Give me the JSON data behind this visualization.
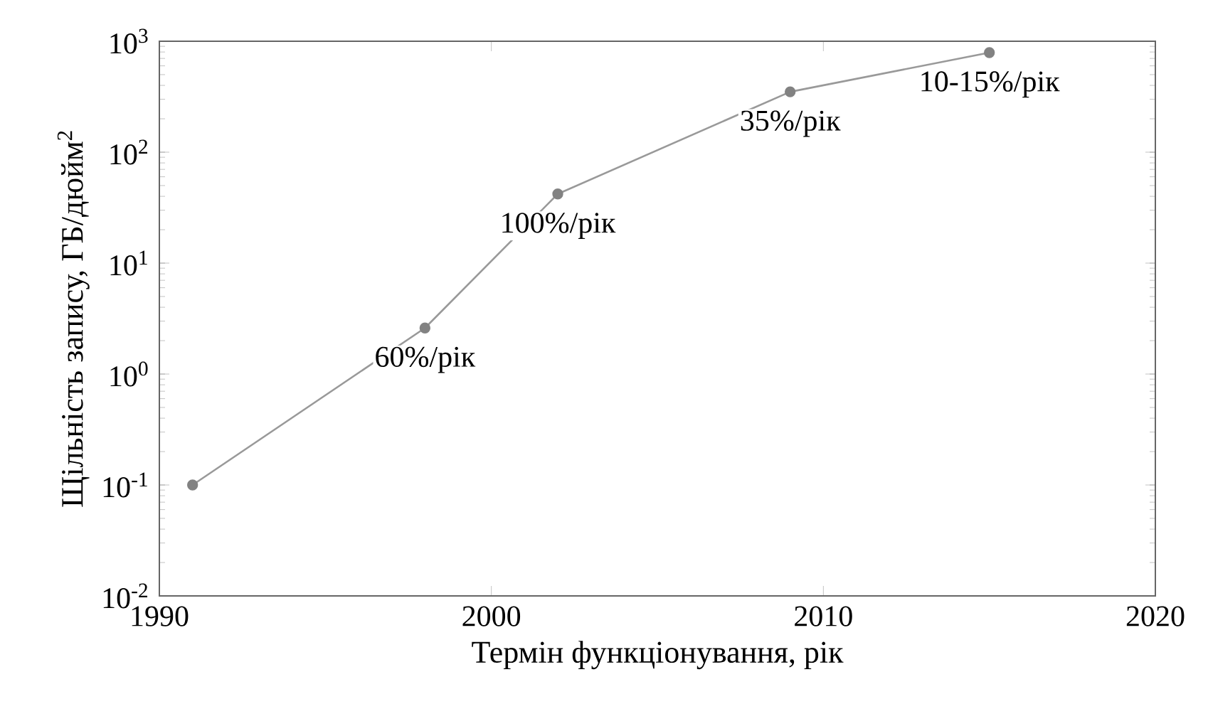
{
  "chart_data": {
    "type": "line",
    "xlabel": "Термін функціонування, рік",
    "ylabel": "Щільність запису,  ГБ/дюйм$^{2}$",
    "x": [
      1991,
      1998,
      2002,
      2009,
      2015
    ],
    "series": [
      {
        "color": "#999999",
        "values": [
          0.1,
          2.6,
          42,
          350,
          790
        ]
      }
    ],
    "xlim": [
      1990,
      2020
    ],
    "xticks": [
      1990,
      2000,
      2010,
      2020
    ],
    "ylim": [
      0.01,
      1000
    ],
    "yticks": [
      {
        "value": 0.01,
        "label": "10$^{-2}$"
      },
      {
        "value": 0.1,
        "label": "10$^{-1}$"
      },
      {
        "value": 1,
        "label": "10$^{0}$"
      },
      {
        "value": 10,
        "label": "10$^{1}$"
      },
      {
        "value": 100,
        "label": "10$^{2}$"
      },
      {
        "value": 1000,
        "label": "10$^{3}$"
      }
    ],
    "log": "y",
    "grid": false,
    "marker": "circle",
    "line_style": "solid",
    "annotations": [
      "60%/рік",
      "100%/рік",
      "35%/рік",
      "10-15%/рік"
    ]
  }
}
